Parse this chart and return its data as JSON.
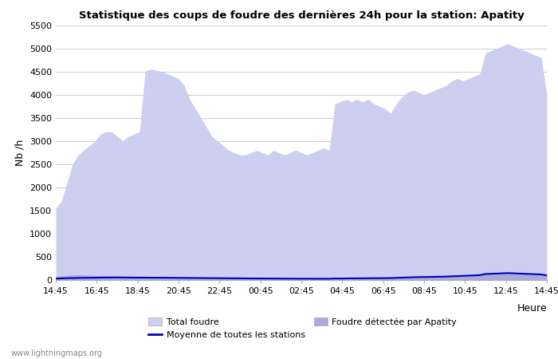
{
  "title": "Statistique des coups de foudre des dernières 24h pour la station: Apatity",
  "ylabel": "Nb /h",
  "xlabel": "Heure",
  "ylim": [
    0,
    5500
  ],
  "yticks": [
    0,
    500,
    1000,
    1500,
    2000,
    2500,
    3000,
    3500,
    4000,
    4500,
    5000,
    5500
  ],
  "xtick_labels": [
    "14:45",
    "16:45",
    "18:45",
    "20:45",
    "22:45",
    "00:45",
    "02:45",
    "04:45",
    "06:45",
    "08:45",
    "10:45",
    "12:45",
    "14:45"
  ],
  "fill_total_color": "#cecef0",
  "fill_local_color": "#aaaadd",
  "line_color": "#0000bb",
  "watermark": "www.lightningmaps.org",
  "legend_total": "Total foudre",
  "legend_mean": "Moyenne de toutes les stations",
  "legend_local": "Foudre détectée par Apatity",
  "total_foudre": [
    1550,
    1700,
    2100,
    2500,
    2700,
    2800,
    2900,
    3000,
    3150,
    3200,
    3200,
    3100,
    3000,
    3100,
    3150,
    3200,
    4500,
    4550,
    4530,
    4500,
    4450,
    4400,
    4350,
    4200,
    3900,
    3700,
    3500,
    3300,
    3100,
    3000,
    2900,
    2800,
    2750,
    2700,
    2700,
    2750,
    2800,
    2750,
    2700,
    2800,
    2750,
    2700,
    2750,
    2800,
    2750,
    2700,
    2750,
    2800,
    2850,
    2800,
    3800,
    3850,
    3900,
    3850,
    3900,
    3850,
    3900,
    3800,
    3750,
    3700,
    3600,
    3800,
    3950,
    4050,
    4100,
    4050,
    4000,
    4050,
    4100,
    4150,
    4200,
    4300,
    4350,
    4300,
    4350,
    4400,
    4450,
    4900,
    4950,
    5000,
    5050,
    5100,
    5050,
    5000,
    4950,
    4900,
    4850,
    4800,
    4000
  ],
  "local_foudre": [
    80,
    90,
    100,
    110,
    115,
    110,
    105,
    100,
    95,
    90,
    88,
    85,
    80,
    78,
    75,
    72,
    70,
    68,
    65,
    63,
    60,
    58,
    55,
    53,
    50,
    48,
    46,
    45,
    44,
    43,
    42,
    41,
    40,
    40,
    39,
    38,
    38,
    37,
    36,
    36,
    35,
    34,
    34,
    33,
    33,
    32,
    32,
    31,
    31,
    30,
    35,
    36,
    37,
    38,
    39,
    40,
    41,
    42,
    43,
    44,
    46,
    50,
    55,
    60,
    65,
    68,
    70,
    72,
    74,
    76,
    80,
    90,
    95,
    100,
    105,
    110,
    115,
    140,
    145,
    150,
    155,
    160,
    155,
    150,
    145,
    140,
    135,
    130,
    110
  ],
  "mean_line": [
    30,
    35,
    40,
    42,
    45,
    47,
    48,
    50,
    52,
    54,
    55,
    56,
    55,
    54,
    53,
    52,
    52,
    51,
    50,
    50,
    49,
    48,
    47,
    46,
    45,
    44,
    43,
    42,
    41,
    40,
    39,
    38,
    37,
    36,
    35,
    34,
    34,
    33,
    33,
    32,
    31,
    30,
    30,
    29,
    29,
    29,
    28,
    28,
    28,
    28,
    32,
    33,
    34,
    35,
    36,
    37,
    38,
    39,
    40,
    41,
    43,
    47,
    52,
    56,
    60,
    63,
    65,
    67,
    70,
    72,
    75,
    80,
    85,
    90,
    95,
    100,
    105,
    130,
    135,
    140,
    145,
    150,
    145,
    140,
    135,
    130,
    125,
    120,
    100
  ]
}
